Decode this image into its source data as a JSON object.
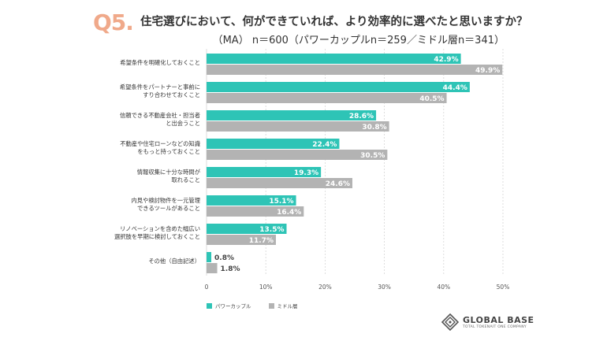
{
  "header": {
    "question_badge": "Q5.",
    "title": "住宅選びにおいて、何ができていれば、より効率的に選べたと思いますか？",
    "subtitle": "（MA） n＝600（パワーカップルn＝259／ミドル層n＝341）"
  },
  "colors": {
    "teal": "#2ec4b6",
    "gray": "#b3b3b3",
    "badge": "#f0a98a"
  },
  "legend": {
    "series_a": "パワーカップル",
    "series_b": "ミドル層"
  },
  "logo": {
    "name": "GLOBAL BASE",
    "tagline": "TOTAL TOKENAIT ONE COMPANY"
  },
  "chart_data": {
    "type": "bar",
    "orientation": "horizontal",
    "categories": [
      [
        "希望条件を明確化しておくこと"
      ],
      [
        "希望条件をパートナーと事前に",
        "すり合わせておくこと"
      ],
      [
        "信頼できる不動産会社・担当者",
        "と出会うこと"
      ],
      [
        "不動産や住宅ローンなどの知識",
        "をもっと持っておくこと"
      ],
      [
        "情報収集に十分な時間が",
        "取れること"
      ],
      [
        "内見や検討物件を一元管理",
        "できるツールがあること"
      ],
      [
        "リノベーションを含めた幅広い",
        "選択肢を早期に検討しておくこと"
      ],
      [
        "その他（自由記述）"
      ]
    ],
    "series": [
      {
        "name": "パワーカップル",
        "values": [
          42.9,
          44.4,
          28.6,
          22.4,
          19.3,
          15.1,
          13.5,
          0.8
        ],
        "labels": [
          "42.9%",
          "44.4%",
          "28.6%",
          "22.4%",
          "19.3%",
          "15.1%",
          "13.5%",
          "0.8%"
        ]
      },
      {
        "name": "ミドル層",
        "values": [
          49.9,
          40.5,
          30.8,
          30.5,
          24.6,
          16.4,
          11.7,
          1.8
        ],
        "labels": [
          "49.9%",
          "40.5%",
          "30.8%",
          "30.5%",
          "24.6%",
          "16.4%",
          "11.7%",
          "1.8%"
        ]
      }
    ],
    "xticks": [
      "0",
      "10%",
      "20%",
      "30%",
      "40%",
      "50%"
    ],
    "xlim": [
      0,
      50
    ],
    "grid": true,
    "legend_position": "bottom-left"
  }
}
